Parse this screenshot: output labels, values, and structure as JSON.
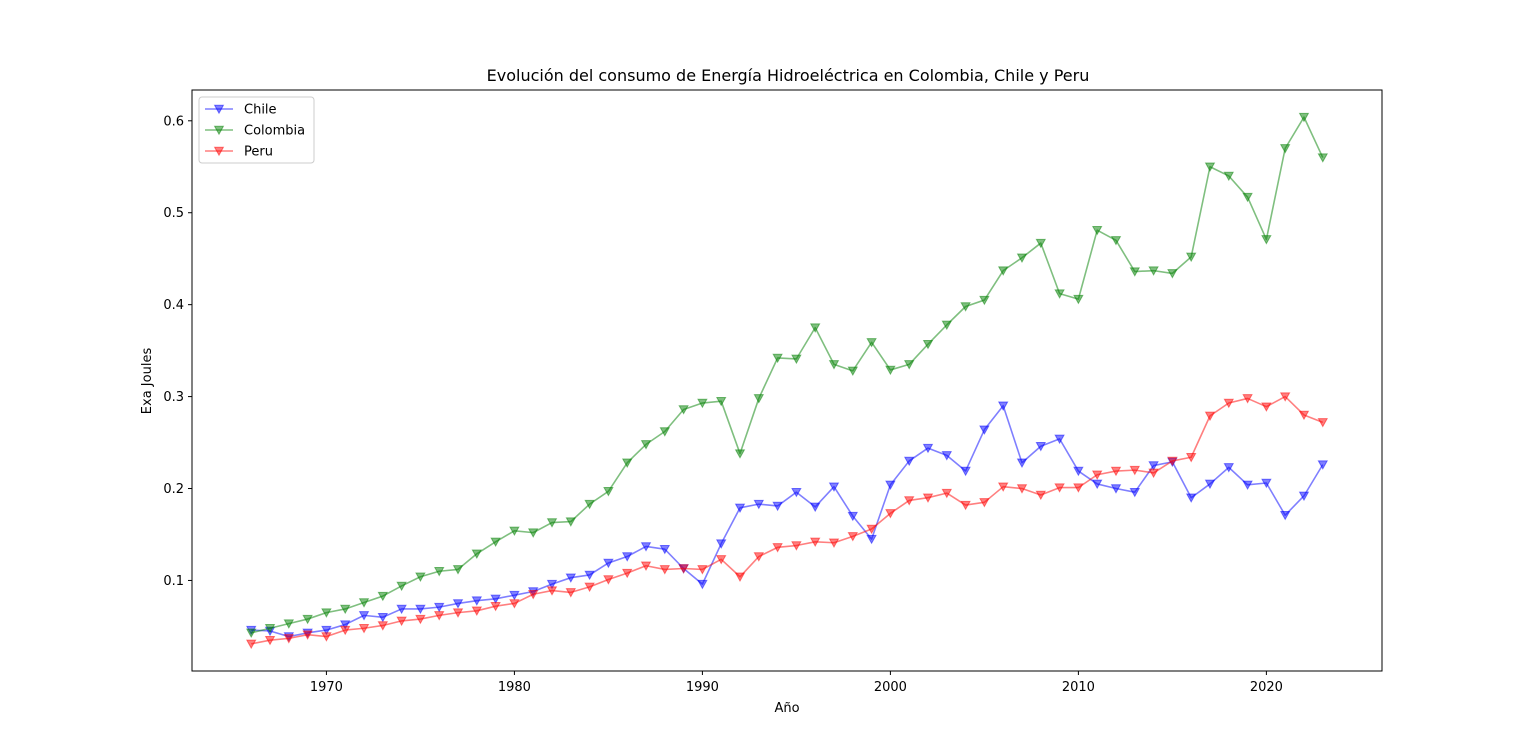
{
  "chart_data": {
    "type": "line",
    "title": "Evolución del consumo de Energía Hidroeléctrica en Colombia, Chile y Peru",
    "xlabel": "Año",
    "ylabel": "Exa Joules",
    "xlim": [
      1962.85,
      2026.15
    ],
    "ylim": [
      0.0015,
      0.6335
    ],
    "xticks": [
      1970,
      1980,
      1990,
      2000,
      2010,
      2020
    ],
    "xtick_labels": [
      "1970",
      "1980",
      "1990",
      "2000",
      "2010",
      "2020"
    ],
    "yticks": [
      0.1,
      0.2,
      0.3,
      0.4,
      0.5,
      0.6
    ],
    "ytick_labels": [
      "0.1",
      "0.2",
      "0.3",
      "0.4",
      "0.5",
      "0.6"
    ],
    "grid": false,
    "legend_position": "upper-left",
    "marker": "triangle-down",
    "x": [
      1966,
      1967,
      1968,
      1969,
      1970,
      1971,
      1972,
      1973,
      1974,
      1975,
      1976,
      1977,
      1978,
      1979,
      1980,
      1981,
      1982,
      1983,
      1984,
      1985,
      1986,
      1987,
      1988,
      1989,
      1990,
      1991,
      1992,
      1993,
      1994,
      1995,
      1996,
      1997,
      1998,
      1999,
      2000,
      2001,
      2002,
      2003,
      2004,
      2005,
      2006,
      2007,
      2008,
      2009,
      2010,
      2011,
      2012,
      2013,
      2014,
      2015,
      2016,
      2017,
      2018,
      2019,
      2020,
      2021,
      2022,
      2023
    ],
    "series": [
      {
        "name": "Chile",
        "color": "#0000ff",
        "values": [
          0.046,
          0.045,
          0.039,
          0.043,
          0.046,
          0.052,
          0.062,
          0.06,
          0.069,
          0.069,
          0.071,
          0.075,
          0.078,
          0.08,
          0.084,
          0.088,
          0.096,
          0.103,
          0.106,
          0.119,
          0.126,
          0.137,
          0.134,
          0.113,
          0.096,
          0.14,
          0.179,
          0.183,
          0.181,
          0.196,
          0.18,
          0.202,
          0.17,
          0.145,
          0.204,
          0.23,
          0.244,
          0.236,
          0.219,
          0.264,
          0.29,
          0.228,
          0.246,
          0.254,
          0.219,
          0.205,
          0.2,
          0.196,
          0.225,
          0.229,
          0.19,
          0.205,
          0.223,
          0.204,
          0.206,
          0.171,
          0.192,
          0.226
        ]
      },
      {
        "name": "Colombia",
        "color": "#008000",
        "values": [
          0.043,
          0.048,
          0.053,
          0.058,
          0.065,
          0.069,
          0.076,
          0.083,
          0.094,
          0.104,
          0.11,
          0.112,
          0.129,
          0.142,
          0.154,
          0.152,
          0.163,
          0.164,
          0.183,
          0.197,
          0.228,
          0.248,
          0.262,
          0.286,
          0.293,
          0.295,
          0.238,
          0.298,
          0.342,
          0.341,
          0.375,
          0.335,
          0.328,
          0.359,
          0.329,
          0.335,
          0.357,
          0.378,
          0.398,
          0.405,
          0.437,
          0.451,
          0.467,
          0.412,
          0.406,
          0.481,
          0.47,
          0.436,
          0.437,
          0.434,
          0.452,
          0.55,
          0.54,
          0.517,
          0.471,
          0.57,
          0.604,
          0.56
        ]
      },
      {
        "name": "Peru",
        "color": "#ff0000",
        "values": [
          0.031,
          0.035,
          0.037,
          0.041,
          0.039,
          0.046,
          0.048,
          0.051,
          0.056,
          0.058,
          0.062,
          0.065,
          0.067,
          0.072,
          0.075,
          0.085,
          0.089,
          0.087,
          0.093,
          0.101,
          0.108,
          0.116,
          0.112,
          0.113,
          0.112,
          0.123,
          0.104,
          0.126,
          0.136,
          0.138,
          0.142,
          0.141,
          0.148,
          0.156,
          0.173,
          0.187,
          0.19,
          0.195,
          0.182,
          0.185,
          0.202,
          0.2,
          0.193,
          0.201,
          0.201,
          0.215,
          0.219,
          0.22,
          0.217,
          0.23,
          0.234,
          0.279,
          0.293,
          0.298,
          0.289,
          0.3,
          0.28,
          0.272
        ]
      }
    ]
  }
}
